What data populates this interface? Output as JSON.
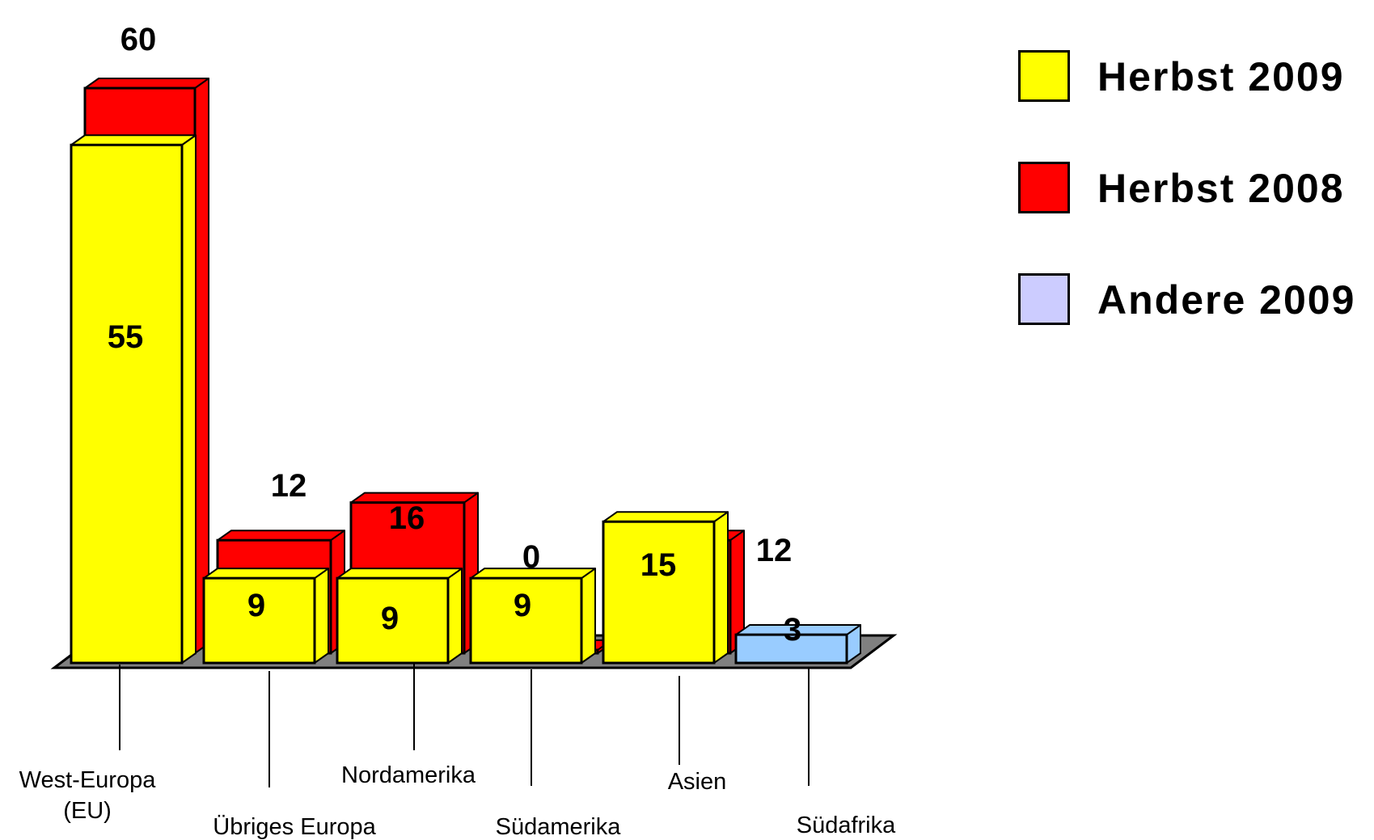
{
  "chart_data": {
    "type": "bar",
    "categories": [
      [
        "West-Europa",
        "(EU)"
      ],
      [
        "Übriges Europa"
      ],
      [
        "Nordamerika"
      ],
      [
        "Südamerika"
      ],
      [
        "Asien"
      ],
      [
        "Südafrika"
      ]
    ],
    "series": [
      {
        "name": "Herbst 2009",
        "color": "#FFFF00",
        "values": [
          55,
          9,
          9,
          9,
          15,
          null
        ]
      },
      {
        "name": "Herbst 2008",
        "color": "#FF0000",
        "values": [
          60,
          12,
          16,
          0,
          12,
          null
        ]
      },
      {
        "name": "Andere 2009",
        "color": "#CCCCFF",
        "values": [
          null,
          null,
          null,
          null,
          null,
          3
        ]
      }
    ],
    "bar_colors": {
      "sudafrika_bar": "#99CCFF",
      "floor": "#808080"
    },
    "ylim": [
      0,
      60
    ],
    "title": "",
    "xlabel": "",
    "ylabel": "",
    "grid": false,
    "legend_position": "right",
    "three_d": true
  }
}
